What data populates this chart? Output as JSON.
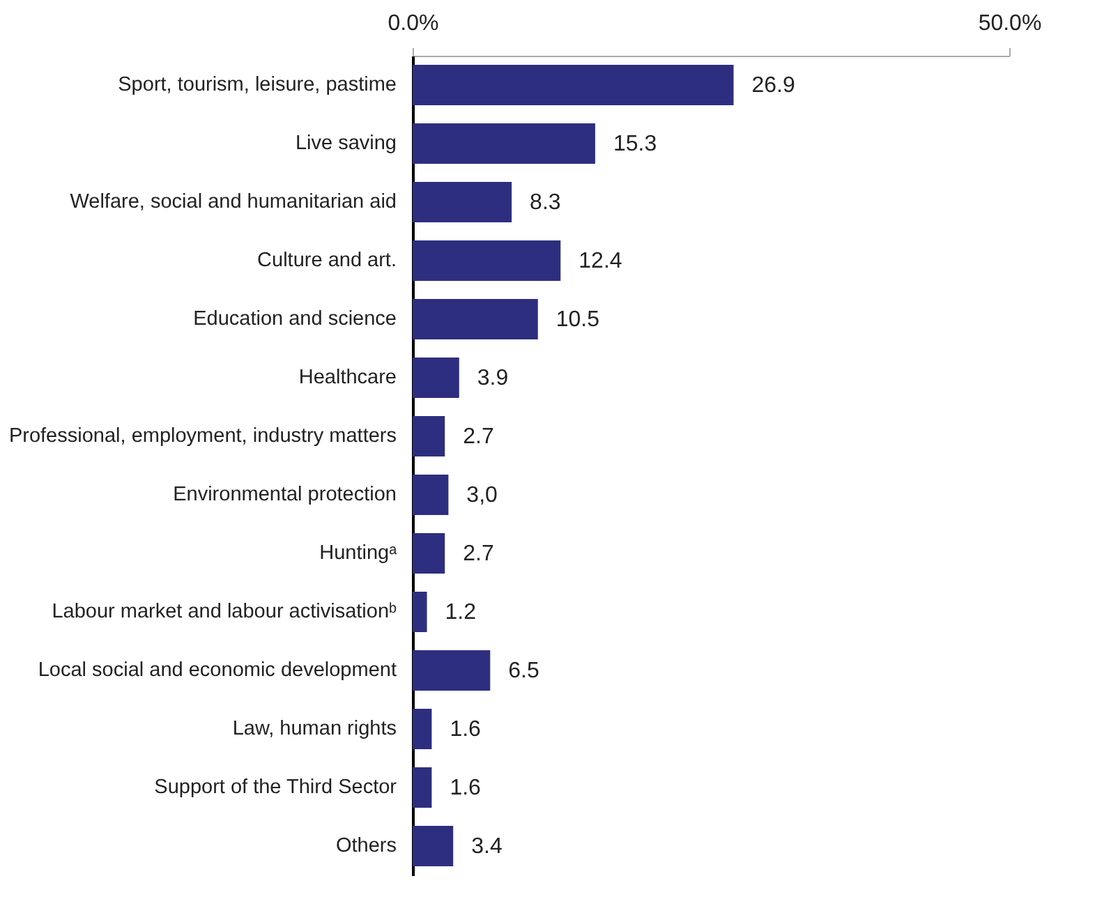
{
  "chart_data": {
    "type": "bar",
    "orientation": "horizontal",
    "categories": [
      "Sport, tourism, leisure, pastime",
      "Live saving",
      "Welfare, social and humanitarian aid",
      "Culture and art.",
      "Education and science",
      "Healthcare",
      "Professional, employment, industry matters",
      "Environmental protection",
      "Huntingᵃ",
      "Labour market and labour activisationᵇ",
      "Local social and economic development",
      "Law, human rights",
      "Support of the Third Sector",
      "Others"
    ],
    "values": [
      26.9,
      15.3,
      8.3,
      12.4,
      10.5,
      3.9,
      2.7,
      3.0,
      2.7,
      1.2,
      6.5,
      1.6,
      1.6,
      3.4
    ],
    "value_labels": [
      "26.9",
      "15.3",
      "8.3",
      "12.4",
      "10.5",
      "3.9",
      "2.7",
      "3,0",
      "2.7",
      "1.2",
      "6.5",
      "1.6",
      "1.6",
      "3.4"
    ],
    "color": "#2e2e80",
    "xlim": [
      0,
      50
    ],
    "xticks": [
      {
        "value": 0,
        "label": "0.0%"
      },
      {
        "value": 50,
        "label": "50.0%"
      }
    ],
    "tick_labels": true
  }
}
